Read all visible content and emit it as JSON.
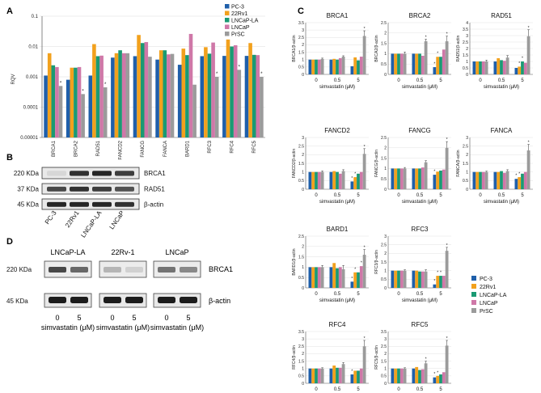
{
  "colors": {
    "PC-3": "#1f5faa",
    "22Rv1": "#f2a11d",
    "LNCaP-LA": "#1a9a73",
    "LNCaP": "#cf78a8",
    "PrSC": "#9b9b9b"
  },
  "panel_labels": {
    "a": "A",
    "b": "B",
    "c": "C",
    "d": "D"
  },
  "chart_data": [
    {
      "type": "bar",
      "panel": "A",
      "ylabel": "RQV",
      "yscale": "log",
      "ylim": [
        1e-05,
        0.1
      ],
      "yticks": [
        "0.00001",
        "0.0001",
        "0.001",
        "0.01",
        "0.1"
      ],
      "categories": [
        "BRCA1",
        "BRCA2",
        "RAD51",
        "FANCD2",
        "FANCG",
        "FANCA",
        "BARD1",
        "RFC3",
        "RFC4",
        "RFC5"
      ],
      "series": [
        {
          "name": "PC-3",
          "values": [
            0.0011,
            0.0008,
            0.0011,
            0.0043,
            0.0048,
            0.0037,
            0.0025,
            0.0048,
            0.0049,
            0.0049
          ]
        },
        {
          "name": "22Rv1",
          "values": [
            0.006,
            0.002,
            0.012,
            0.006,
            0.024,
            0.0075,
            0.0085,
            0.0095,
            0.017,
            0.013
          ]
        },
        {
          "name": "LNCaP-LA",
          "values": [
            0.0024,
            0.002,
            0.0048,
            0.0075,
            0.013,
            0.0075,
            0.0052,
            0.0058,
            0.01,
            0.0053
          ]
        },
        {
          "name": "LNCaP",
          "values": [
            0.0021,
            0.0021,
            0.005,
            0.006,
            0.014,
            0.0055,
            0.026,
            0.0135,
            0.011,
            0.0052
          ]
        },
        {
          "name": "PrSC",
          "values": [
            0.0005,
            0.00027,
            0.00045,
            0.006,
            0.0046,
            0.0057,
            0.00055,
            0.001,
            0.0017,
            0.001
          ]
        }
      ],
      "significant": [
        true,
        true,
        true,
        false,
        false,
        false,
        false,
        true,
        true,
        true
      ],
      "legend": [
        "PC-3",
        "22Rv1",
        "LNCaP-LA",
        "LNCaP",
        "PrSC"
      ],
      "star": "*"
    },
    {
      "type": "bar",
      "panel": "C",
      "title": "BRCA1",
      "ylabel": "BRCA1/β-actin",
      "ylim": [
        0,
        3.5
      ],
      "yticks": [
        "0",
        "0.5",
        "1",
        "1.5",
        "2",
        "2.5",
        "3",
        "3.5"
      ],
      "xticks": [
        "0",
        "0.5",
        "5"
      ],
      "xlabel": "simvastatin (μM)",
      "series": [
        {
          "name": "PC-3",
          "values": [
            1,
            1,
            0.55
          ]
        },
        {
          "name": "22Rv1",
          "values": [
            1,
            1.05,
            1.15
          ]
        },
        {
          "name": "LNCaP-LA",
          "values": [
            1,
            1,
            0.95
          ]
        },
        {
          "name": "LNCaP",
          "values": [
            1,
            1.1,
            1.2
          ]
        },
        {
          "name": "PrSC",
          "values": [
            1.05,
            1.2,
            2.6
          ]
        }
      ],
      "errors": [
        0.05,
        0.06,
        0.35
      ],
      "stars": [
        [
          false,
          false,
          false,
          false,
          false
        ],
        [
          false,
          false,
          false,
          false,
          false
        ],
        [
          false,
          false,
          false,
          false,
          true
        ]
      ]
    },
    {
      "type": "bar",
      "panel": "C",
      "title": "BRCA2",
      "ylabel": "BRCA2/β-actin",
      "ylim": [
        0,
        2.5
      ],
      "yticks": [
        "0",
        "0.5",
        "1",
        "1.5",
        "2",
        "2.5"
      ],
      "xticks": [
        "0",
        "0.5",
        "5"
      ],
      "xlabel": "simvastatin (μM)",
      "series": [
        {
          "name": "PC-3",
          "values": [
            1,
            1,
            0.35
          ]
        },
        {
          "name": "22Rv1",
          "values": [
            1,
            1,
            0.85
          ]
        },
        {
          "name": "LNCaP-LA",
          "values": [
            1,
            1,
            0.85
          ]
        },
        {
          "name": "LNCaP",
          "values": [
            1,
            0.9,
            1.2
          ]
        },
        {
          "name": "PrSC",
          "values": [
            1,
            1.6,
            1.6
          ]
        }
      ],
      "errors": [
        0.08,
        0.1,
        0.25
      ],
      "stars": [
        [
          false,
          false,
          false,
          false,
          false
        ],
        [
          false,
          false,
          false,
          false,
          true
        ],
        [
          true,
          true,
          false,
          false,
          true
        ]
      ]
    },
    {
      "type": "bar",
      "panel": "C",
      "title": "RAD51",
      "ylabel": "RAD51/β-actin",
      "ylim": [
        0,
        4
      ],
      "yticks": [
        "0",
        "0.5",
        "1",
        "1.5",
        "2",
        "2.5",
        "3",
        "3.5",
        "4"
      ],
      "xticks": [
        "0",
        "0.5",
        "5"
      ],
      "xlabel": "simvastatin (μM)",
      "series": [
        {
          "name": "PC-3",
          "values": [
            1,
            1,
            0.5
          ]
        },
        {
          "name": "22Rv1",
          "values": [
            1,
            1.25,
            0.6
          ]
        },
        {
          "name": "LNCaP-LA",
          "values": [
            1,
            1.1,
            1
          ]
        },
        {
          "name": "LNCaP",
          "values": [
            1,
            1.05,
            0.9
          ]
        },
        {
          "name": "PrSC",
          "values": [
            1,
            1.3,
            2.95
          ]
        }
      ],
      "errors": [
        0.1,
        0.15,
        0.5
      ],
      "stars": [
        [
          false,
          false,
          false,
          false,
          false
        ],
        [
          false,
          false,
          false,
          false,
          false
        ],
        [
          false,
          true,
          true,
          false,
          true
        ]
      ]
    },
    {
      "type": "bar",
      "panel": "C",
      "title": "FANCD2",
      "ylabel": "FANCD2/β-actin",
      "ylim": [
        0,
        3
      ],
      "yticks": [
        "0",
        "0.5",
        "1",
        "1.5",
        "2",
        "2.5",
        "3"
      ],
      "xticks": [
        "0",
        "0.5",
        "5"
      ],
      "xlabel": "simvastatin (μM)",
      "series": [
        {
          "name": "PC-3",
          "values": [
            1,
            1,
            0.45
          ]
        },
        {
          "name": "22Rv1",
          "values": [
            1,
            1.05,
            0.7
          ]
        },
        {
          "name": "LNCaP-LA",
          "values": [
            1,
            1,
            0.9
          ]
        },
        {
          "name": "LNCaP",
          "values": [
            1,
            0.9,
            1
          ]
        },
        {
          "name": "PrSC",
          "values": [
            1,
            1.05,
            2.05
          ]
        }
      ],
      "errors": [
        0.06,
        0.08,
        0.3
      ],
      "stars": [
        [
          false,
          false,
          false,
          false,
          false
        ],
        [
          false,
          false,
          false,
          false,
          false
        ],
        [
          true,
          true,
          false,
          false,
          true
        ]
      ]
    },
    {
      "type": "bar",
      "panel": "C",
      "title": "FANCG",
      "ylabel": "FANCG/β-actin",
      "ylim": [
        0,
        2.5
      ],
      "yticks": [
        "0",
        "0.5",
        "1",
        "1.5",
        "2",
        "2.5"
      ],
      "xticks": [
        "0",
        "0.5",
        "5"
      ],
      "xlabel": "simvastatin (μM)",
      "series": [
        {
          "name": "PC-3",
          "values": [
            1,
            1,
            0.7
          ]
        },
        {
          "name": "22Rv1",
          "values": [
            1,
            1,
            0.85
          ]
        },
        {
          "name": "LNCaP-LA",
          "values": [
            1,
            1,
            0.9
          ]
        },
        {
          "name": "LNCaP",
          "values": [
            1,
            1.05,
            0.95
          ]
        },
        {
          "name": "PrSC",
          "values": [
            1,
            1.3,
            2
          ]
        }
      ],
      "errors": [
        0.05,
        0.08,
        0.3
      ],
      "stars": [
        [
          false,
          false,
          false,
          false,
          false
        ],
        [
          false,
          false,
          false,
          false,
          false
        ],
        [
          true,
          false,
          false,
          false,
          true
        ]
      ]
    },
    {
      "type": "bar",
      "panel": "C",
      "title": "FANCA",
      "ylabel": "FANCA/β-actin",
      "ylim": [
        0,
        3
      ],
      "yticks": [
        "0",
        "0.5",
        "1",
        "1.5",
        "2",
        "2.5",
        "3"
      ],
      "xticks": [
        "0",
        "0.5",
        "5"
      ],
      "xlabel": "simvastatin (μM)",
      "series": [
        {
          "name": "PC-3",
          "values": [
            1,
            1,
            0.6
          ]
        },
        {
          "name": "22Rv1",
          "values": [
            1,
            1,
            0.7
          ]
        },
        {
          "name": "LNCaP-LA",
          "values": [
            1,
            1.05,
            0.9
          ]
        },
        {
          "name": "LNCaP",
          "values": [
            1,
            0.95,
            1
          ]
        },
        {
          "name": "PrSC",
          "values": [
            1,
            1.05,
            2.25
          ]
        }
      ],
      "errors": [
        0.05,
        0.08,
        0.35
      ],
      "stars": [
        [
          false,
          false,
          false,
          false,
          false
        ],
        [
          false,
          false,
          false,
          false,
          false
        ],
        [
          true,
          true,
          false,
          false,
          true
        ]
      ]
    },
    {
      "type": "bar",
      "panel": "C",
      "title": "BARD1",
      "ylabel": "BARD1/β-actin",
      "ylim": [
        0,
        2.5
      ],
      "yticks": [
        "0",
        "0.5",
        "1",
        "1.5",
        "2",
        "2.5"
      ],
      "xticks": [
        "0",
        "0.5",
        "5"
      ],
      "xlabel": "simvastatin (μM)",
      "series": [
        {
          "name": "PC-3",
          "values": [
            1,
            1,
            0.3
          ]
        },
        {
          "name": "22Rv1",
          "values": [
            1,
            1.2,
            0.75
          ]
        },
        {
          "name": "LNCaP-LA",
          "values": [
            1,
            0.95,
            0.75
          ]
        },
        {
          "name": "LNCaP",
          "values": [
            1,
            1,
            1.05
          ]
        },
        {
          "name": "PrSC",
          "values": [
            1,
            0.9,
            1.6
          ]
        }
      ],
      "errors": [
        0.08,
        0.18,
        0.25
      ],
      "stars": [
        [
          false,
          false,
          false,
          false,
          false
        ],
        [
          false,
          false,
          false,
          false,
          false
        ],
        [
          true,
          true,
          false,
          true,
          true
        ]
      ]
    },
    {
      "type": "bar",
      "panel": "C",
      "title": "RFC3",
      "ylabel": "RFC3/β-actin",
      "ylim": [
        0,
        3
      ],
      "yticks": [
        "0",
        "0.5",
        "1",
        "1.5",
        "2",
        "2.5",
        "3"
      ],
      "xticks": [
        "0",
        "0.5",
        "5"
      ],
      "xlabel": "simvastatin (μM)",
      "series": [
        {
          "name": "PC-3",
          "values": [
            1,
            1,
            0.2
          ]
        },
        {
          "name": "22Rv1",
          "values": [
            1,
            1,
            0.7
          ]
        },
        {
          "name": "LNCaP-LA",
          "values": [
            1,
            0.95,
            0.7
          ]
        },
        {
          "name": "LNCaP",
          "values": [
            1,
            0.95,
            0.7
          ]
        },
        {
          "name": "PrSC",
          "values": [
            1,
            0.95,
            2.15
          ]
        }
      ],
      "errors": [
        0.05,
        0.1,
        0.2
      ],
      "stars": [
        [
          false,
          false,
          false,
          false,
          false
        ],
        [
          false,
          false,
          false,
          false,
          false
        ],
        [
          true,
          true,
          true,
          false,
          true
        ]
      ]
    },
    {
      "type": "bar",
      "panel": "C",
      "title": "RFC4",
      "ylabel": "RFC4/β-actin",
      "ylim": [
        0,
        3.5
      ],
      "yticks": [
        "0",
        "0.5",
        "1",
        "1.5",
        "2",
        "2.5",
        "3",
        "3.5"
      ],
      "xticks": [
        "0",
        "0.5",
        "5"
      ],
      "xlabel": "simvastatin (μM)",
      "series": [
        {
          "name": "PC-3",
          "values": [
            1,
            1,
            0.6
          ]
        },
        {
          "name": "22Rv1",
          "values": [
            1,
            1.2,
            0.85
          ]
        },
        {
          "name": "LNCaP-LA",
          "values": [
            1,
            1.05,
            0.85
          ]
        },
        {
          "name": "LNCaP",
          "values": [
            1,
            1.05,
            1
          ]
        },
        {
          "name": "PrSC",
          "values": [
            1,
            1.3,
            2.5
          ]
        }
      ],
      "errors": [
        0.05,
        0.1,
        0.4
      ],
      "stars": [
        [
          false,
          false,
          false,
          false,
          false
        ],
        [
          false,
          false,
          false,
          false,
          false
        ],
        [
          true,
          false,
          false,
          false,
          true
        ]
      ]
    },
    {
      "type": "bar",
      "panel": "C",
      "title": "RFC5",
      "ylabel": "RFC5/β-actin",
      "ylim": [
        0,
        3.5
      ],
      "yticks": [
        "0",
        "0.5",
        "1",
        "1.5",
        "2",
        "2.5",
        "3",
        "3.5"
      ],
      "xticks": [
        "0",
        "0.5",
        "5"
      ],
      "xlabel": "simvastatin (μM)",
      "series": [
        {
          "name": "PC-3",
          "values": [
            1,
            1,
            0.4
          ]
        },
        {
          "name": "22Rv1",
          "values": [
            1,
            1.1,
            0.5
          ]
        },
        {
          "name": "LNCaP-LA",
          "values": [
            1,
            0.9,
            0.6
          ]
        },
        {
          "name": "LNCaP",
          "values": [
            1,
            0.95,
            0.75
          ]
        },
        {
          "name": "PrSC",
          "values": [
            1,
            1.35,
            2.55
          ]
        }
      ],
      "errors": [
        0.05,
        0.15,
        0.35
      ],
      "stars": [
        [
          false,
          false,
          false,
          false,
          false
        ],
        [
          false,
          false,
          false,
          false,
          true
        ],
        [
          true,
          true,
          false,
          false,
          true
        ]
      ]
    }
  ],
  "legend_c": [
    "PC-3",
    "22Rv1",
    "LNCaP-LA",
    "LNCaP",
    "PrSC"
  ],
  "blot_b": {
    "bands": [
      {
        "size": "220 KDa",
        "label": "BRCA1"
      },
      {
        "size": "37 KDa",
        "label": "RAD51"
      },
      {
        "size": "45 KDa",
        "label": "β-actin"
      }
    ],
    "lanes": [
      "PC-3",
      "22Rv1",
      "LNCaP-LA",
      "LNCaP"
    ]
  },
  "blot_d": {
    "groups": [
      "LNCaP-LA",
      "22Rv-1",
      "LNCaP"
    ],
    "bands": [
      {
        "size": "220 KDa",
        "label": "BRCA1"
      },
      {
        "size": "45 KDa",
        "label": "β-actin"
      }
    ],
    "doses": [
      "0",
      "5"
    ],
    "xlabel": "simvastatin (μM)"
  }
}
